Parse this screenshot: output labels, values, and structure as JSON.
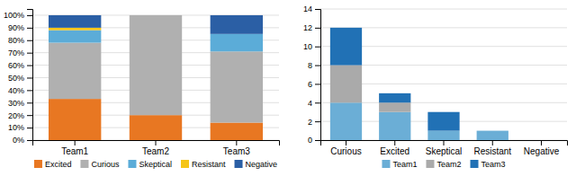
{
  "chart_data": [
    {
      "type": "bar",
      "stacked": true,
      "grid": true,
      "legend": "bottom",
      "categories": [
        "Team1",
        "Team2",
        "Team3"
      ],
      "series": [
        {
          "name": "Excited",
          "color": "#E87722",
          "values": [
            0.33,
            0.2,
            0.14
          ]
        },
        {
          "name": "Curious",
          "color": "#B0B0B0",
          "values": [
            0.45,
            0.8,
            0.57
          ]
        },
        {
          "name": "Skeptical",
          "color": "#5BACD8",
          "values": [
            0.1,
            0.0,
            0.14
          ]
        },
        {
          "name": "Resistant",
          "color": "#F5C518",
          "values": [
            0.02,
            0.0,
            0.0
          ]
        },
        {
          "name": "Negative",
          "color": "#2B5FA5",
          "values": [
            0.1,
            0.0,
            0.15
          ]
        }
      ],
      "ylim": [
        0,
        1.05
      ],
      "yticks": [
        {
          "value": 0,
          "label": "0%"
        },
        {
          "value": 0.1,
          "label": "10%"
        },
        {
          "value": 0.2,
          "label": "20%"
        },
        {
          "value": 0.3,
          "label": "30%"
        },
        {
          "value": 0.4,
          "label": "40%"
        },
        {
          "value": 0.5,
          "label": "50%"
        },
        {
          "value": 0.6,
          "label": "60%"
        },
        {
          "value": 0.7,
          "label": "70%"
        },
        {
          "value": 0.8,
          "label": "80%"
        },
        {
          "value": 0.9,
          "label": "90%"
        },
        {
          "value": 1.0,
          "label": "100%"
        }
      ]
    },
    {
      "type": "bar",
      "stacked": true,
      "grid": true,
      "legend": "bottom",
      "categories": [
        "Curious",
        "Excited",
        "Skeptical",
        "Resistant",
        "Negative"
      ],
      "series": [
        {
          "name": "Team1",
          "color": "#6BAED6",
          "values": [
            4,
            3,
            1,
            1,
            0
          ]
        },
        {
          "name": "Team2",
          "color": "#AAAAAA",
          "values": [
            4,
            1,
            0,
            0,
            0
          ]
        },
        {
          "name": "Team3",
          "color": "#2171B5",
          "values": [
            4,
            1,
            2,
            0,
            0
          ]
        }
      ],
      "ylim": [
        0,
        14
      ],
      "yticks": [
        0,
        2,
        4,
        6,
        8,
        10,
        12,
        14
      ]
    }
  ]
}
